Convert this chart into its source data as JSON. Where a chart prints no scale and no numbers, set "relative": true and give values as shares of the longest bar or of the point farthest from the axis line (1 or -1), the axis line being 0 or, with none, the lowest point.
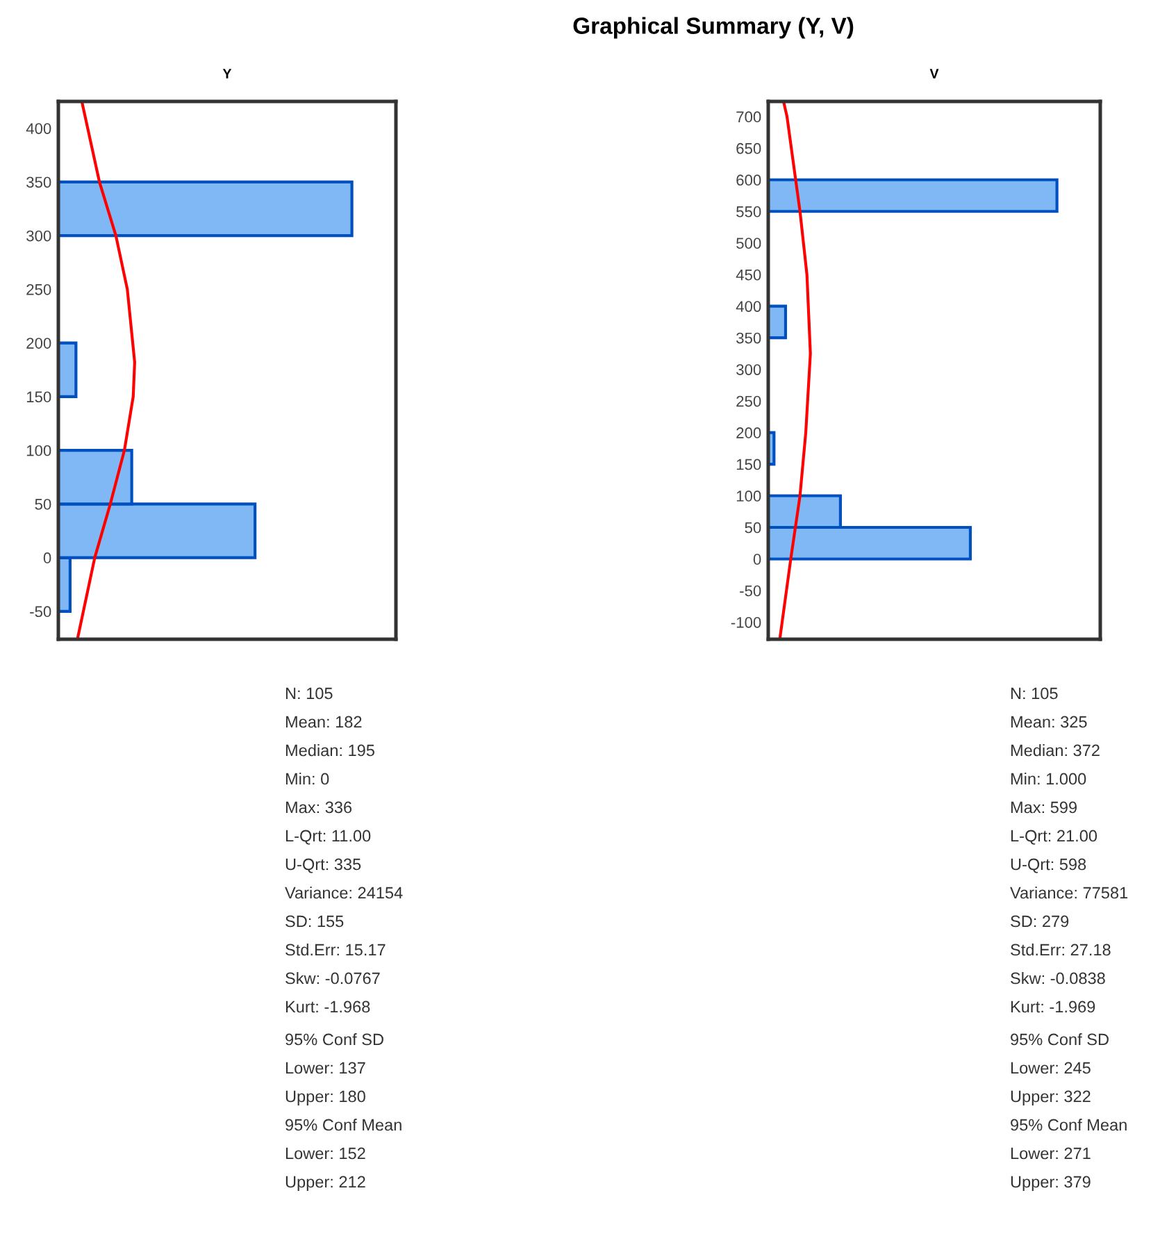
{
  "chart_data": [
    {
      "type": "other",
      "title": "Graphical Summary (Y, V)"
    },
    {
      "type": "histogram",
      "subtitle": "Y",
      "orientation": "horizontal",
      "relative": true,
      "tick_labels": "y",
      "grid": false,
      "legend": false,
      "ylim": [
        -76,
        425
      ],
      "yticks": [
        -50,
        0,
        50,
        100,
        150,
        200,
        250,
        300,
        350,
        400
      ],
      "series": [
        {
          "type": "histogram",
          "color": "#7fb8f5",
          "bins": [
            -50,
            0,
            50,
            100,
            150,
            200,
            250,
            300,
            350
          ],
          "values": [
            0.04,
            0.67,
            0.25,
            0,
            0.06,
            0,
            0,
            1
          ]
        },
        {
          "type": "line",
          "color": "#ff0000",
          "x": [
            -76,
            0,
            50,
            100,
            150,
            182,
            250,
            300,
            350,
            425
          ],
          "values": [
            0.065,
            0.124,
            0.177,
            0.225,
            0.255,
            0.26,
            0.235,
            0.196,
            0.14,
            0.08
          ]
        }
      ],
      "annotations": [
        "N: 105",
        "Mean: 182",
        "Median: 195",
        "Min: 0",
        "Max: 336",
        "L-Qrt: 11.00",
        "U-Qrt: 335",
        "Variance: 24154",
        "SD: 155",
        "Std.Err: 15.17",
        "Skw: -0.0767",
        "Kurt: -1.968",
        "95% Conf SD",
        "Lower: 137",
        "Upper: 180",
        "95% Conf Mean",
        "Lower: 152",
        "Upper: 212"
      ]
    },
    {
      "type": "histogram",
      "subtitle": "V",
      "orientation": "horizontal",
      "relative": true,
      "tick_labels": "y",
      "grid": false,
      "legend": false,
      "ylim": [
        -127,
        724
      ],
      "yticks": [
        -100,
        -50,
        0,
        50,
        100,
        150,
        200,
        250,
        300,
        350,
        400,
        450,
        500,
        550,
        600,
        650,
        700
      ],
      "series": [
        {
          "type": "histogram",
          "color": "#7fb8f5",
          "bins": [
            0,
            50,
            100,
            150,
            200,
            250,
            300,
            350,
            400,
            450,
            500,
            550,
            600
          ],
          "values": [
            0.7,
            0.25,
            0,
            0.02,
            0,
            0,
            0,
            0.06,
            0,
            0,
            0,
            1
          ]
        },
        {
          "type": "line",
          "color": "#ff0000",
          "x": [
            -127,
            0,
            100,
            200,
            325,
            450,
            550,
            700,
            724
          ],
          "values": [
            0.04,
            0.078,
            0.11,
            0.13,
            0.146,
            0.134,
            0.11,
            0.065,
            0.053
          ]
        }
      ],
      "annotations": [
        "N: 105",
        "Mean: 325",
        "Median: 372",
        "Min: 1.000",
        "Max: 599",
        "L-Qrt: 21.00",
        "U-Qrt: 598",
        "Variance: 77581",
        "SD: 279",
        "Std.Err: 27.18",
        "Skw: -0.0838",
        "Kurt: -1.969",
        "95% Conf SD",
        "Lower: 245",
        "Upper: 322",
        "95% Conf Mean",
        "Lower: 271",
        "Upper: 379"
      ]
    }
  ]
}
